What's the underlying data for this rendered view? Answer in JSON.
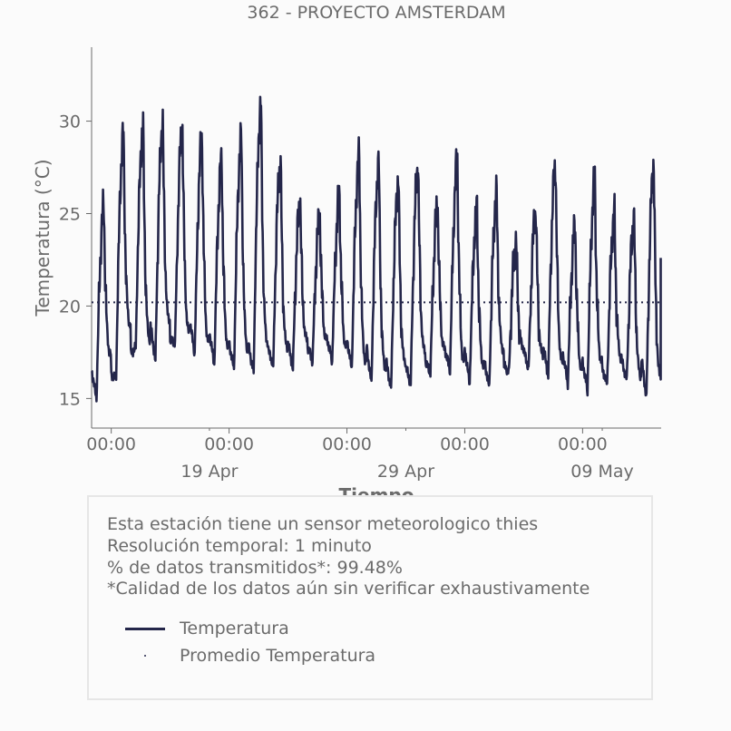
{
  "chart_data": {
    "type": "line",
    "title": "362 - PROYECTO AMSTERDAM",
    "xlabel": "Tiempo",
    "ylabel": "Temperatura (°C)",
    "ylim": [
      13.4,
      34
    ],
    "xlim": [
      "2025-04-13T00:00",
      "2025-05-12T00:00"
    ],
    "yticks": [
      15,
      20,
      25,
      30
    ],
    "xticks_major": [
      {
        "x": "2025-04-14T00:00",
        "label": "00:00"
      },
      {
        "x": "2025-04-20T00:00",
        "label": "00:00"
      },
      {
        "x": "2025-04-26T00:00",
        "label": "00:00"
      },
      {
        "x": "2025-05-02T00:00",
        "label": "00:00"
      },
      {
        "x": "2025-05-08T00:00",
        "label": "00:00"
      }
    ],
    "xticks_minor": [
      {
        "x": "2025-04-19T00:00",
        "label": "19 Apr"
      },
      {
        "x": "2025-04-29T00:00",
        "label": "29 Apr"
      },
      {
        "x": "2025-05-09T00:00",
        "label": "09 May"
      }
    ],
    "grid": false,
    "colors": {
      "series": "#24264a",
      "text": "#6b6b6b",
      "box_border": "#e6e6e6"
    },
    "series": [
      {
        "name": "Temperatura",
        "style": "solid",
        "daily": [
          {
            "date": "2025-04-13",
            "min": 15.0,
            "max": 25.3
          },
          {
            "date": "2025-04-14",
            "min": 16.2,
            "max": 29.2
          },
          {
            "date": "2025-04-15",
            "min": 17.8,
            "max": 29.6
          },
          {
            "date": "2025-04-16",
            "min": 17.0,
            "max": 29.8
          },
          {
            "date": "2025-04-17",
            "min": 18.0,
            "max": 29.6
          },
          {
            "date": "2025-04-18",
            "min": 17.4,
            "max": 29.0
          },
          {
            "date": "2025-04-19",
            "min": 16.8,
            "max": 27.8
          },
          {
            "date": "2025-04-20",
            "min": 16.6,
            "max": 29.0
          },
          {
            "date": "2025-04-21",
            "min": 16.4,
            "max": 30.8
          },
          {
            "date": "2025-04-22",
            "min": 16.8,
            "max": 27.8
          },
          {
            "date": "2025-04-23",
            "min": 16.6,
            "max": 25.5
          },
          {
            "date": "2025-04-24",
            "min": 17.0,
            "max": 24.8
          },
          {
            "date": "2025-04-25",
            "min": 17.0,
            "max": 25.9
          },
          {
            "date": "2025-04-26",
            "min": 16.6,
            "max": 28.0
          },
          {
            "date": "2025-04-27",
            "min": 15.8,
            "max": 27.6
          },
          {
            "date": "2025-04-28",
            "min": 15.5,
            "max": 26.8
          },
          {
            "date": "2025-04-29",
            "min": 15.8,
            "max": 27.6
          },
          {
            "date": "2025-04-30",
            "min": 16.4,
            "max": 25.4
          },
          {
            "date": "2025-05-01",
            "min": 16.5,
            "max": 27.8
          },
          {
            "date": "2025-05-02",
            "min": 15.8,
            "max": 25.2
          },
          {
            "date": "2025-05-03",
            "min": 15.6,
            "max": 26.0
          },
          {
            "date": "2025-05-04",
            "min": 16.4,
            "max": 23.4
          },
          {
            "date": "2025-05-05",
            "min": 16.6,
            "max": 25.1
          },
          {
            "date": "2025-05-06",
            "min": 16.2,
            "max": 27.6
          },
          {
            "date": "2025-05-07",
            "min": 15.8,
            "max": 24.2
          },
          {
            "date": "2025-05-08",
            "min": 15.4,
            "max": 26.8
          },
          {
            "date": "2025-05-09",
            "min": 15.8,
            "max": 24.9
          },
          {
            "date": "2025-05-10",
            "min": 16.0,
            "max": 24.6
          },
          {
            "date": "2025-05-11",
            "min": 15.0,
            "max": 27.6
          }
        ],
        "last": {
          "x": "2025-05-11T23:30",
          "y": 22.6
        }
      },
      {
        "name": "Promedio Temperatura",
        "style": "dotted",
        "value": 20.2
      }
    ]
  },
  "info": {
    "lines": [
      "Esta estación tiene un sensor meteorologico thies",
      "Resolución temporal: 1 minuto",
      "% de datos transmitidos*: 99.48%",
      "*Calidad de los datos aún sin verificar exhaustivamente"
    ],
    "legend": [
      {
        "label": "Temperatura",
        "marker": "line"
      },
      {
        "label": "Promedio Temperatura",
        "marker": "dot"
      }
    ]
  }
}
